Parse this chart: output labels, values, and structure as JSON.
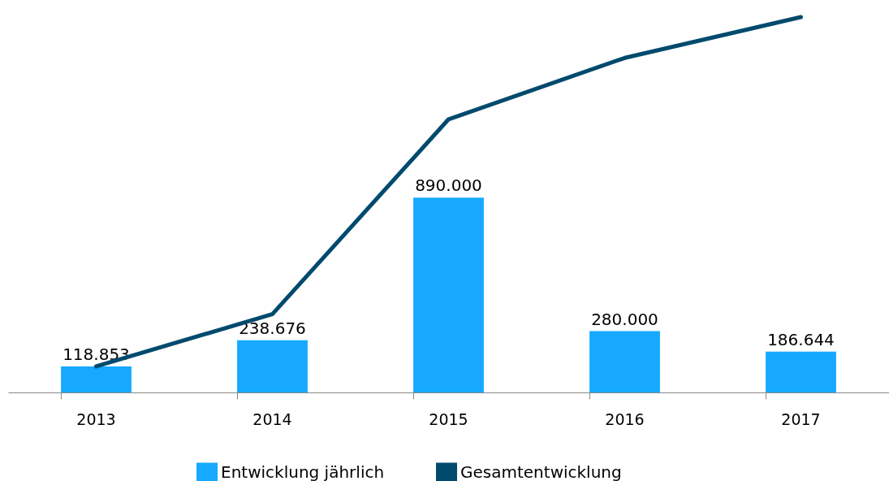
{
  "chart_data": {
    "type": "bar",
    "categories": [
      "2013",
      "2014",
      "2015",
      "2016",
      "2017"
    ],
    "legend": "bottom",
    "grid": false,
    "series": [
      {
        "name": "Entwicklung jährlich",
        "color": "#16a9ff",
        "values": [
          118853,
          238676,
          890000,
          280000,
          186644
        ],
        "value_labels": [
          "118.853",
          "238.676",
          "890.000",
          "280.000",
          "186.644"
        ]
      },
      {
        "name": "Gesamtentwicklung",
        "type": "line",
        "color": "#004a6e",
        "values": [
          118853,
          357529,
          1247529,
          1527529,
          1714173
        ]
      }
    ]
  }
}
